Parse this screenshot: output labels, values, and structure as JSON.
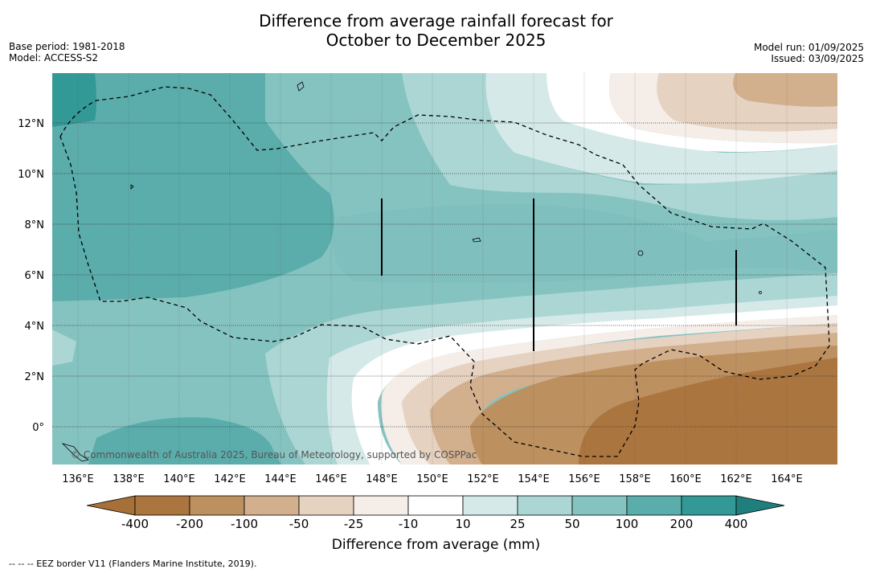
{
  "title_line1": "Difference from average rainfall forecast for",
  "title_line2": "October to December 2025",
  "meta_left": [
    "Base period: 1981-2018",
    "Model: ACCESS-S2"
  ],
  "meta_right": [
    "Model run: 01/09/2025",
    "Issued: 03/09/2025"
  ],
  "lon_ticks": [
    "136°E",
    "138°E",
    "140°E",
    "142°E",
    "144°E",
    "146°E",
    "148°E",
    "150°E",
    "152°E",
    "154°E",
    "156°E",
    "158°E",
    "160°E",
    "162°E",
    "164°E"
  ],
  "lat_ticks": [
    "12°N",
    "10°N",
    "8°N",
    "6°N",
    "4°N",
    "2°N",
    "0°"
  ],
  "copyright": "© Commonwealth of Australia 2025, Bureau of Meteorology, supported by COSPPac",
  "colorbar": {
    "labels": [
      "-400",
      "-200",
      "-100",
      "-50",
      "-25",
      "-10",
      "10",
      "25",
      "50",
      "100",
      "200",
      "400"
    ],
    "colors": [
      "#a77038",
      "#ab7540",
      "#bd905f",
      "#d2af8d",
      "#e6d2c0",
      "#f5ede8",
      "#ffffff",
      "#d5e9e9",
      "#abd6d4",
      "#85c3c1",
      "#5aadab",
      "#339996",
      "#1f7f7c"
    ],
    "title": "Difference from average (mm)"
  },
  "footnote": "--  --  -- EEZ border V11 (Flanders Marine Institute, 2019)."
}
